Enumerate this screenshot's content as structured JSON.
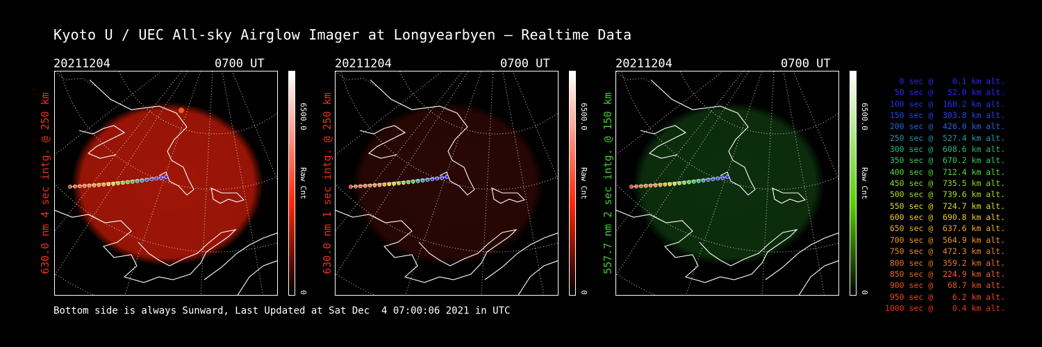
{
  "title": "Kyoto U / UEC All-sky Airglow Imager at Longyearbyen — Realtime Data",
  "panels": [
    {
      "date": "20211204",
      "time": "0700 UT",
      "ylabel": "630.0 nm 4 sec intg. @ 250 km",
      "label_color": "#e8331a",
      "cbar_max": "6500.0",
      "cbar_min": "0",
      "cbar_unit": "Raw Cnt",
      "cbar_color": "#ff2200",
      "glow_color": "#b01808",
      "glow_intensity": 0.9
    },
    {
      "date": "20211204",
      "time": "0700 UT",
      "ylabel": "630.0 nm 1 sec intg. @ 250 km",
      "label_color": "#e8331a",
      "cbar_max": "6500.0",
      "cbar_min": "0",
      "cbar_unit": "Raw Cnt",
      "cbar_color": "#ff2200",
      "glow_color": "#3a0a06",
      "glow_intensity": 0.7
    },
    {
      "date": "20211204",
      "time": "0700 UT",
      "ylabel": "557.7 nm 2 sec intg. @ 150 km",
      "label_color": "#3ecf2a",
      "cbar_max": "6500.0",
      "cbar_min": "0",
      "cbar_unit": "Raw Cnt",
      "cbar_color": "#55cc00",
      "glow_color": "#0f3a10",
      "glow_intensity": 0.8
    }
  ],
  "legend": [
    {
      "text": "   0 sec @    0.1 km alt.",
      "color": "#3322ff"
    },
    {
      "text": "  50 sec @   52.0 km alt.",
      "color": "#3322ff"
    },
    {
      "text": " 100 sec @  160.2 km alt.",
      "color": "#2233ee"
    },
    {
      "text": " 150 sec @  303.8 km alt.",
      "color": "#2244ee"
    },
    {
      "text": " 200 sec @  426.0 km alt.",
      "color": "#2266dd"
    },
    {
      "text": " 250 sec @  527.4 km alt.",
      "color": "#2299aa"
    },
    {
      "text": " 300 sec @  608.6 km alt.",
      "color": "#22bb88"
    },
    {
      "text": " 350 sec @  670.2 km alt.",
      "color": "#33cc55"
    },
    {
      "text": " 400 sec @  712.4 km alt.",
      "color": "#55dd33"
    },
    {
      "text": " 450 sec @  735.5 km alt.",
      "color": "#88dd22"
    },
    {
      "text": " 500 sec @  739.6 km alt.",
      "color": "#aadd22"
    },
    {
      "text": " 550 sec @  724.7 km alt.",
      "color": "#dddd22"
    },
    {
      "text": " 600 sec @  690.8 km alt.",
      "color": "#eecc22"
    },
    {
      "text": " 650 sec @  637.6 km alt.",
      "color": "#eeaa22"
    },
    {
      "text": " 700 sec @  564.9 km alt.",
      "color": "#ee9922"
    },
    {
      "text": " 750 sec @  472.3 km alt.",
      "color": "#ee8822"
    },
    {
      "text": " 800 sec @  359.2 km alt.",
      "color": "#ee7722"
    },
    {
      "text": " 850 sec @  224.9 km alt.",
      "color": "#ee6622"
    },
    {
      "text": " 900 sec @   68.7 km alt.",
      "color": "#ee5522"
    },
    {
      "text": " 950 sec @    6.2 km alt.",
      "color": "#ee4422"
    },
    {
      "text": "1000 sec @    0.4 km alt.",
      "color": "#ee3322"
    }
  ],
  "footer": "Bottom side is always Sunward, Last Updated at Sat Dec  4 07:00:06 2021 in UTC"
}
